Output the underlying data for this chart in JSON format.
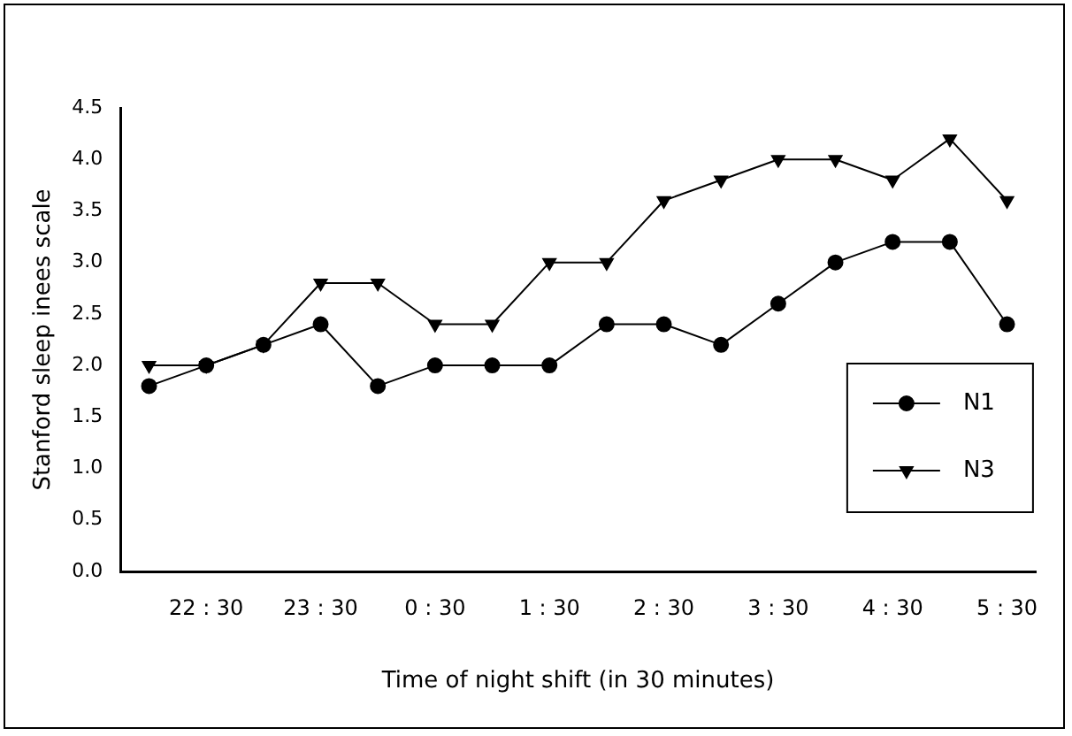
{
  "chart_data": {
    "type": "line",
    "xlabel": "Time of night shift (in 30 minutes)",
    "ylabel": "Stanford sleep inees scale",
    "categories": [
      null,
      "22 : 30",
      null,
      "23 : 30",
      null,
      "0 : 30",
      null,
      "1 : 30",
      null,
      "2 : 30",
      null,
      "3 : 30",
      null,
      "4 : 30",
      null,
      "5 : 30"
    ],
    "series": [
      {
        "name": "N1",
        "color": "#000000",
        "marker": "circle",
        "values": [
          1.8,
          2.0,
          2.2,
          2.4,
          1.8,
          2.0,
          2.0,
          2.0,
          2.4,
          2.4,
          2.2,
          2.6,
          3.0,
          3.2,
          3.2,
          2.4
        ]
      },
      {
        "name": "N3",
        "color": "#000000",
        "marker": "triangle",
        "values": [
          2.0,
          2.0,
          2.2,
          2.8,
          2.8,
          2.4,
          2.4,
          3.0,
          3.0,
          3.6,
          3.8,
          4.0,
          4.0,
          3.8,
          4.2,
          3.6
        ]
      }
    ],
    "ylim": [
      0,
      4.5
    ],
    "yticks": [
      {
        "value": 0,
        "label": "0.0"
      },
      0.5,
      {
        "value": 1,
        "label": "1.0"
      },
      1.5,
      {
        "value": 2,
        "label": "2.0"
      },
      2.5,
      {
        "value": 3,
        "label": "3.0"
      },
      3.5,
      {
        "value": 4,
        "label": "4.0"
      },
      4.5
    ],
    "grid": false,
    "legend": "right",
    "line_style": "solid"
  }
}
